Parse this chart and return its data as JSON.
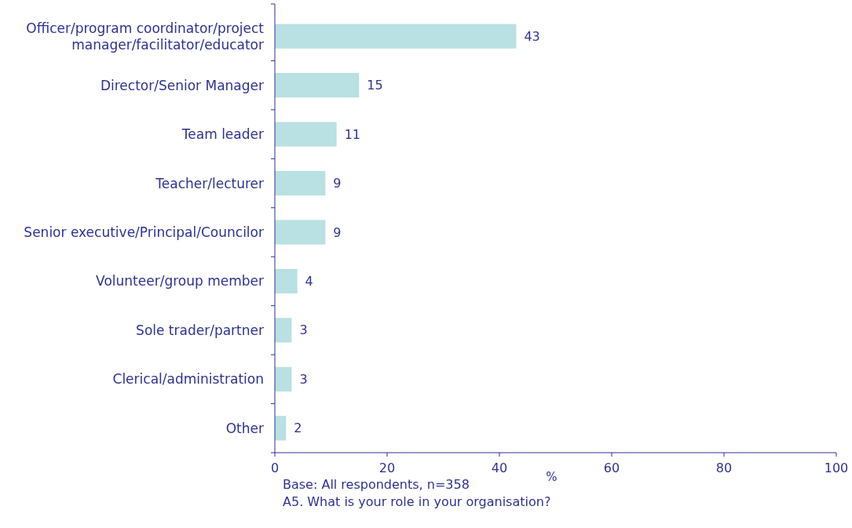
{
  "chart_data": {
    "type": "bar",
    "orientation": "horizontal",
    "categories": [
      "Officer/program coordinator/project manager/facilitator/educator",
      "Director/Senior Manager",
      "Team leader",
      "Teacher/lecturer",
      "Senior executive/Principal/Councilor",
      "Volunteer/group member",
      "Sole trader/partner",
      "Clerical/administration",
      "Other"
    ],
    "values": [
      43,
      15,
      11,
      9,
      9,
      4,
      3,
      3,
      2
    ],
    "color": "#b9e0e2",
    "xlim": [
      0,
      100
    ],
    "xticks": [
      0,
      20,
      40,
      60,
      80,
      100
    ],
    "xlabel": "%",
    "data_labels": true,
    "annotations": [
      "Base: All respondents, n=358",
      "A5. What is your role in your organisation?"
    ]
  }
}
